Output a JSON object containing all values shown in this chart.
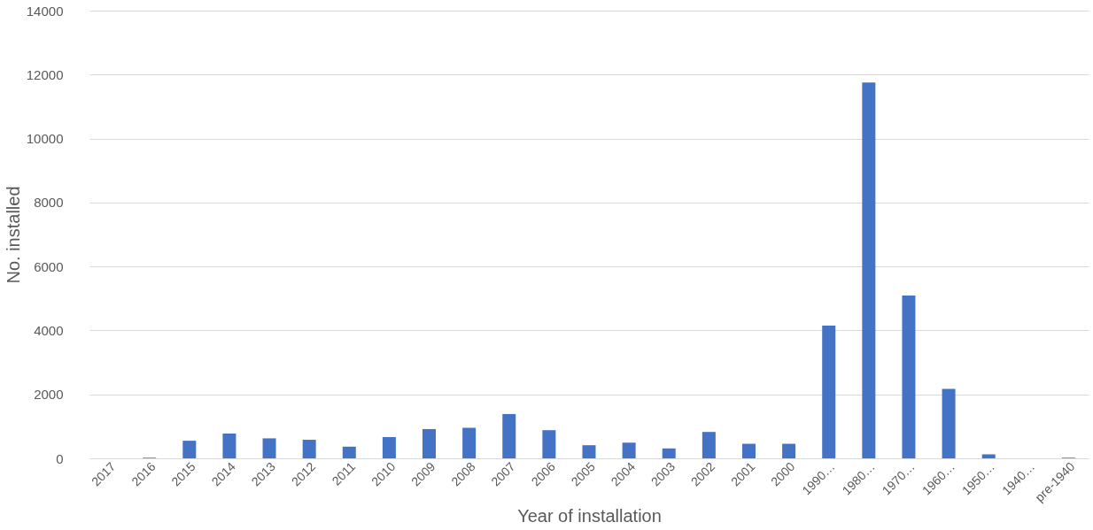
{
  "chart_data": {
    "type": "bar",
    "xlabel": "Year of installation",
    "ylabel": "No. installed",
    "categories": [
      "2017",
      "2016",
      "2015",
      "2014",
      "2013",
      "2012",
      "2011",
      "2010",
      "2009",
      "2008",
      "2007",
      "2006",
      "2005",
      "2004",
      "2003",
      "2002",
      "2001",
      "2000",
      "1990…",
      "1980…",
      "1970…",
      "1960…",
      "1950…",
      "1940…",
      "pre-1940"
    ],
    "values": [
      0,
      20,
      550,
      775,
      625,
      580,
      365,
      665,
      915,
      955,
      1385,
      880,
      410,
      490,
      310,
      825,
      455,
      455,
      4150,
      11750,
      5090,
      2170,
      125,
      0,
      20
    ],
    "color": "#4472c4",
    "ylim": [
      0,
      14000
    ],
    "yticks": [
      0,
      2000,
      4000,
      6000,
      8000,
      10000,
      12000,
      14000
    ],
    "grid": "y"
  }
}
